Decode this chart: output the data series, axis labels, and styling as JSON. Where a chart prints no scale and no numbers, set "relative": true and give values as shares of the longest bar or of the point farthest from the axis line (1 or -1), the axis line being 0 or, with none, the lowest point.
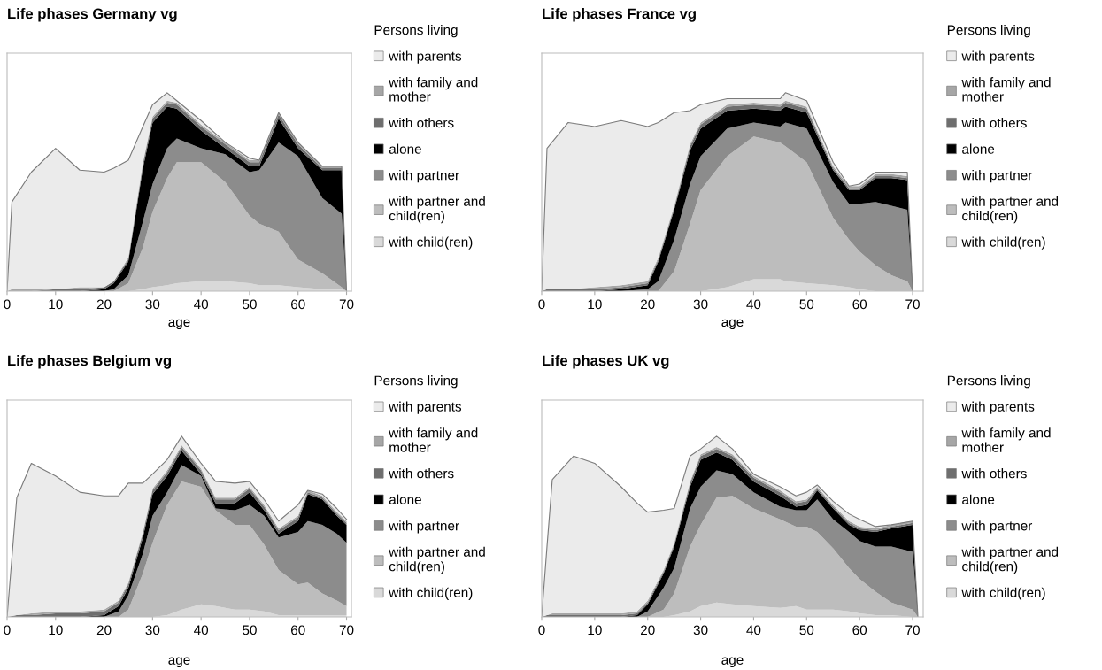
{
  "chart_data": [
    {
      "type": "area",
      "stacked": true,
      "relative": true,
      "title": "Life phases Germany vg",
      "xlabel": "age",
      "legend_title": "Persons living",
      "legend": "right",
      "tick_labels": "x",
      "grid": false,
      "xlim": [
        0,
        71
      ],
      "xticks": [
        0,
        10,
        20,
        30,
        40,
        50,
        60,
        70
      ],
      "x": [
        0,
        1,
        5,
        10,
        15,
        20,
        22,
        25,
        28,
        30,
        33,
        35,
        40,
        45,
        50,
        52,
        56,
        60,
        65,
        69,
        70
      ],
      "series": [
        {
          "name": "with child(ren)",
          "color": "#d9d9d9",
          "values": [
            0,
            0,
            0,
            0,
            0,
            0,
            0,
            0,
            0.01,
            0.02,
            0.03,
            0.04,
            0.05,
            0.05,
            0.04,
            0.03,
            0.03,
            0.02,
            0.01,
            0.01,
            0
          ]
        },
        {
          "name": "with partner and child(ren)",
          "color": "#bdbdbd",
          "values": [
            0,
            0,
            0,
            0,
            0,
            0,
            0,
            0.04,
            0.21,
            0.38,
            0.54,
            0.61,
            0.6,
            0.5,
            0.34,
            0.31,
            0.27,
            0.14,
            0.08,
            0.01,
            0
          ]
        },
        {
          "name": "with partner",
          "color": "#8c8c8c",
          "values": [
            0,
            0,
            0,
            0,
            0,
            0,
            0.01,
            0.04,
            0.13,
            0.14,
            0.15,
            0.12,
            0.07,
            0.14,
            0.22,
            0.27,
            0.45,
            0.52,
            0.38,
            0.37,
            0
          ]
        },
        {
          "name": "alone",
          "color": "#000000",
          "values": [
            0,
            0,
            0,
            0,
            0,
            0.01,
            0.03,
            0.07,
            0.27,
            0.31,
            0.21,
            0.15,
            0.09,
            0.03,
            0.03,
            0.02,
            0.12,
            0.04,
            0.14,
            0.22,
            0
          ]
        },
        {
          "name": "with others",
          "color": "#6e6e6e",
          "values": [
            0,
            0,
            0,
            0.01,
            0.01,
            0.01,
            0.01,
            0.01,
            0.02,
            0.02,
            0.02,
            0.02,
            0.02,
            0.02,
            0.02,
            0.02,
            0.02,
            0.02,
            0.01,
            0.01,
            0
          ]
        },
        {
          "name": "with family and mother",
          "color": "#a6a6a6",
          "values": [
            0,
            0.01,
            0.01,
            0,
            0.01,
            0,
            0,
            0.01,
            0.01,
            0.01,
            0.01,
            0.01,
            0.01,
            0.01,
            0.01,
            0.01,
            0.01,
            0.01,
            0.01,
            0.01,
            0
          ]
        },
        {
          "name": "with parents",
          "color": "#ebebeb",
          "values": [
            0,
            0.44,
            0.59,
            0.71,
            0.59,
            0.58,
            0.57,
            0.49,
            0.18,
            0.06,
            0.04,
            0.01,
            0.02,
            0,
            0.01,
            0,
            0,
            0,
            0,
            0,
            0
          ]
        }
      ]
    },
    {
      "type": "area",
      "stacked": true,
      "relative": true,
      "title": "Life phases France vg",
      "xlabel": "age",
      "legend_title": "Persons living",
      "legend": "right",
      "tick_labels": "x",
      "grid": false,
      "xlim": [
        0,
        72
      ],
      "xticks": [
        0,
        10,
        20,
        30,
        40,
        50,
        60,
        70
      ],
      "x": [
        0,
        1,
        5,
        10,
        15,
        20,
        22,
        25,
        28,
        30,
        35,
        40,
        45,
        46,
        50,
        55,
        58,
        60,
        63,
        66,
        69,
        70
      ],
      "series": [
        {
          "name": "with child(ren)",
          "color": "#d9d9d9",
          "values": [
            0,
            0,
            0,
            0,
            0,
            0,
            0,
            0,
            0,
            0,
            0.02,
            0.06,
            0.06,
            0.05,
            0.04,
            0.03,
            0.02,
            0.01,
            0,
            0,
            0,
            0
          ]
        },
        {
          "name": "with partner and child(ren)",
          "color": "#bdbdbd",
          "values": [
            0,
            0,
            0,
            0,
            0,
            0,
            0,
            0.1,
            0.34,
            0.51,
            0.66,
            0.72,
            0.69,
            0.68,
            0.61,
            0.34,
            0.24,
            0.19,
            0.13,
            0.08,
            0.05,
            0
          ]
        },
        {
          "name": "with partner",
          "color": "#8c8c8c",
          "values": [
            0,
            0,
            0,
            0,
            0,
            0.01,
            0.05,
            0.16,
            0.2,
            0.17,
            0.14,
            0.07,
            0.08,
            0.12,
            0.17,
            0.18,
            0.18,
            0.24,
            0.32,
            0.35,
            0.36,
            0
          ]
        },
        {
          "name": "alone",
          "color": "#000000",
          "values": [
            0,
            0,
            0,
            0,
            0.01,
            0.02,
            0.1,
            0.15,
            0.17,
            0.14,
            0.09,
            0.07,
            0.08,
            0.08,
            0.08,
            0.06,
            0.07,
            0.07,
            0.12,
            0.14,
            0.15,
            0
          ]
        },
        {
          "name": "with others",
          "color": "#6e6e6e",
          "values": [
            0,
            0.01,
            0.01,
            0.01,
            0.01,
            0.01,
            0.01,
            0.01,
            0.02,
            0.02,
            0.02,
            0.02,
            0.02,
            0.02,
            0.02,
            0.01,
            0.01,
            0.01,
            0.01,
            0.01,
            0.01,
            0
          ]
        },
        {
          "name": "with family and mother",
          "color": "#a6a6a6",
          "values": [
            0,
            0,
            0,
            0.01,
            0.01,
            0.01,
            0.01,
            0.01,
            0.01,
            0.01,
            0.01,
            0.01,
            0.01,
            0.01,
            0.01,
            0.01,
            0.01,
            0.01,
            0.01,
            0.01,
            0.01,
            0
          ]
        },
        {
          "name": "with parents",
          "color": "#ebebeb",
          "values": [
            0,
            0.71,
            0.84,
            0.81,
            0.83,
            0.78,
            0.68,
            0.47,
            0.17,
            0.09,
            0.03,
            0.02,
            0.03,
            0.04,
            0.03,
            0.02,
            0,
            0.01,
            0.01,
            0.01,
            0.02,
            0
          ]
        }
      ]
    },
    {
      "type": "area",
      "stacked": true,
      "relative": true,
      "title": "Life phases Belgium vg",
      "xlabel": "age",
      "legend_title": "Persons living",
      "legend": "right",
      "tick_labels": "x",
      "grid": false,
      "xlim": [
        0,
        71
      ],
      "xticks": [
        0,
        10,
        20,
        30,
        40,
        50,
        60,
        70
      ],
      "x": [
        0,
        2,
        5,
        10,
        15,
        20,
        23,
        25,
        28,
        30,
        33,
        36,
        40,
        43,
        47,
        50,
        53,
        56,
        60,
        62,
        65,
        68,
        70
      ],
      "series": [
        {
          "name": "with child(ren)",
          "color": "#d9d9d9",
          "values": [
            0,
            0,
            0,
            0,
            0,
            0,
            0,
            0,
            0,
            0,
            0.01,
            0.04,
            0.07,
            0.06,
            0.04,
            0.04,
            0.03,
            0.01,
            0.01,
            0.01,
            0.01,
            0.01,
            0.01
          ]
        },
        {
          "name": "with partner and child(ren)",
          "color": "#bdbdbd",
          "values": [
            0,
            0,
            0,
            0,
            0,
            0,
            0,
            0.04,
            0.24,
            0.41,
            0.61,
            0.71,
            0.65,
            0.53,
            0.47,
            0.47,
            0.37,
            0.25,
            0.17,
            0.18,
            0.12,
            0.08,
            0.05
          ]
        },
        {
          "name": "with partner",
          "color": "#8c8c8c",
          "values": [
            0,
            0,
            0,
            0,
            0,
            0,
            0.03,
            0.08,
            0.11,
            0.15,
            0.07,
            0.09,
            0.06,
            0.01,
            0.08,
            0.11,
            0.16,
            0.18,
            0.29,
            0.34,
            0.38,
            0.37,
            0.35
          ]
        },
        {
          "name": "alone",
          "color": "#000000",
          "values": [
            0,
            0,
            0,
            0,
            0,
            0.01,
            0.03,
            0.04,
            0.09,
            0.12,
            0.09,
            0.08,
            0.01,
            0.03,
            0.04,
            0.07,
            0.03,
            0.02,
            0.06,
            0.15,
            0.14,
            0.1,
            0.1
          ]
        },
        {
          "name": "with others",
          "color": "#6e6e6e",
          "values": [
            0,
            0.01,
            0.01,
            0.02,
            0.02,
            0.02,
            0.02,
            0.02,
            0.02,
            0.02,
            0.02,
            0.02,
            0.02,
            0.02,
            0.02,
            0.02,
            0.02,
            0.02,
            0.02,
            0.01,
            0.01,
            0.01,
            0.01
          ]
        },
        {
          "name": "with family and mother",
          "color": "#a6a6a6",
          "values": [
            0,
            0,
            0.01,
            0.01,
            0.01,
            0.01,
            0.01,
            0.01,
            0.01,
            0.01,
            0.01,
            0.01,
            0.01,
            0.01,
            0.01,
            0.01,
            0.01,
            0.01,
            0.01,
            0.01,
            0.01,
            0.01,
            0.01
          ]
        },
        {
          "name": "with parents",
          "color": "#ebebeb",
          "values": [
            0,
            0.65,
            0.83,
            0.75,
            0.66,
            0.63,
            0.58,
            0.55,
            0.27,
            0.08,
            0.06,
            0.05,
            0.03,
            0.09,
            0.08,
            0.03,
            0.03,
            0.04,
            0.06,
            0,
            0.01,
            0.02,
            0.01
          ]
        }
      ]
    },
    {
      "type": "area",
      "stacked": true,
      "relative": true,
      "title": "Life phases UK vg",
      "xlabel": "age",
      "legend_title": "Persons living",
      "legend": "right",
      "tick_labels": "x",
      "grid": false,
      "xlim": [
        0,
        72
      ],
      "xticks": [
        0,
        10,
        20,
        30,
        40,
        50,
        60,
        70
      ],
      "x": [
        0,
        1,
        2,
        6,
        10,
        15,
        18,
        20,
        23,
        25,
        28,
        30,
        33,
        36,
        40,
        45,
        48,
        50,
        52,
        55,
        58,
        60,
        63,
        66,
        70,
        71
      ],
      "series": [
        {
          "name": "with child(ren)",
          "color": "#d9d9d9",
          "values": [
            0,
            0,
            0,
            0,
            0,
            0,
            0,
            0,
            0,
            0.01,
            0.03,
            0.06,
            0.08,
            0.07,
            0.06,
            0.05,
            0.06,
            0.04,
            0.04,
            0.04,
            0.03,
            0.02,
            0.01,
            0.01,
            0,
            0
          ]
        },
        {
          "name": "with partner and child(ren)",
          "color": "#bdbdbd",
          "values": [
            0,
            0,
            0,
            0,
            0,
            0,
            0,
            0,
            0.04,
            0.12,
            0.36,
            0.45,
            0.58,
            0.6,
            0.54,
            0.49,
            0.44,
            0.46,
            0.43,
            0.34,
            0.24,
            0.19,
            0.13,
            0.07,
            0.04,
            0
          ]
        },
        {
          "name": "with partner",
          "color": "#8c8c8c",
          "values": [
            0,
            0,
            0,
            0,
            0,
            0,
            0,
            0.03,
            0.12,
            0.14,
            0.21,
            0.21,
            0.15,
            0.12,
            0.09,
            0.07,
            0.09,
            0.09,
            0.18,
            0.16,
            0.2,
            0.21,
            0.25,
            0.31,
            0.32,
            0
          ]
        },
        {
          "name": "alone",
          "color": "#000000",
          "values": [
            0,
            0,
            0,
            0,
            0,
            0,
            0.01,
            0.04,
            0.08,
            0.12,
            0.12,
            0.15,
            0.1,
            0.08,
            0.06,
            0.06,
            0.02,
            0.03,
            0.05,
            0.06,
            0.04,
            0.06,
            0.08,
            0.1,
            0.15,
            0
          ]
        },
        {
          "name": "with others",
          "color": "#6e6e6e",
          "values": [
            0,
            0.01,
            0.01,
            0.01,
            0.01,
            0.01,
            0.01,
            0.01,
            0.01,
            0.01,
            0.02,
            0.02,
            0.02,
            0.02,
            0.02,
            0.02,
            0.02,
            0.02,
            0.01,
            0.01,
            0.01,
            0.01,
            0.01,
            0.01,
            0.01,
            0
          ]
        },
        {
          "name": "with family and mother",
          "color": "#a6a6a6",
          "values": [
            0,
            0,
            0.01,
            0.01,
            0.01,
            0.01,
            0.01,
            0.01,
            0.01,
            0.01,
            0.01,
            0.01,
            0.01,
            0.01,
            0.01,
            0.01,
            0.01,
            0.01,
            0.01,
            0.01,
            0.01,
            0.01,
            0.01,
            0.01,
            0.01,
            0
          ]
        },
        {
          "name": "with parents",
          "color": "#ebebeb",
          "values": [
            0,
            0.38,
            0.74,
            0.87,
            0.83,
            0.7,
            0.6,
            0.49,
            0.33,
            0.19,
            0.14,
            0.03,
            0.06,
            0.03,
            0.01,
            0.02,
            0.03,
            0.04,
            0.01,
            0.02,
            0.04,
            0.04,
            0.01,
            0,
            0,
            0
          ]
        }
      ]
    }
  ]
}
